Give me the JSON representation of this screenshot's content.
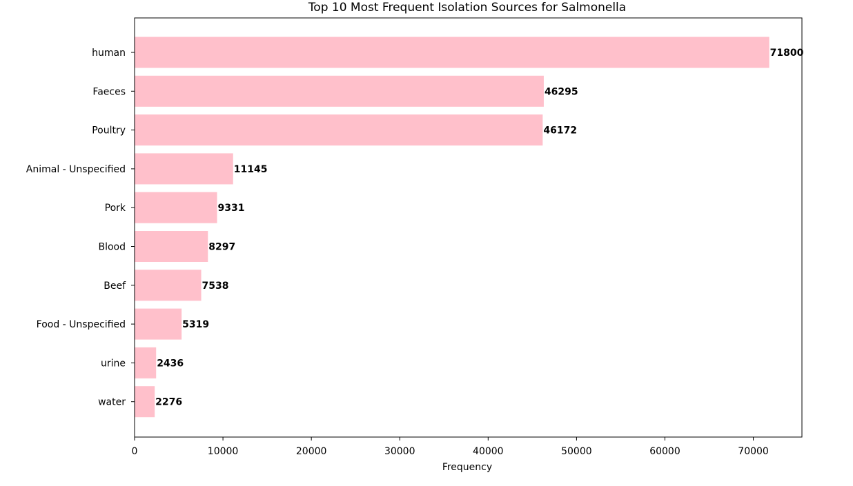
{
  "chart_data": {
    "type": "bar",
    "orientation": "horizontal",
    "title": "Top 10 Most Frequent Isolation Sources for Salmonella",
    "xlabel": "Frequency",
    "ylabel": "",
    "categories": [
      "human",
      "Faeces",
      "Poultry",
      "Animal - Unspecified",
      "Pork",
      "Blood",
      "Beef",
      "Food - Unspecified",
      "urine",
      "water"
    ],
    "values": [
      71800,
      46295,
      46172,
      11145,
      9331,
      8297,
      7538,
      5319,
      2436,
      2276
    ],
    "data_labels": [
      "71800",
      "46295",
      "46172",
      "11145",
      "9331",
      "8297",
      "7538",
      "5319",
      "2436",
      "2276"
    ],
    "xlim": [
      0,
      75500
    ],
    "xticks": [
      0,
      10000,
      20000,
      30000,
      40000,
      50000,
      60000,
      70000
    ],
    "xtick_labels": [
      "0",
      "10000",
      "20000",
      "30000",
      "40000",
      "50000",
      "60000",
      "70000"
    ],
    "grid": false,
    "colors": {
      "bar": "#ffc0cb",
      "axis": "#000000",
      "text": "#000000",
      "background": "#ffffff"
    }
  }
}
